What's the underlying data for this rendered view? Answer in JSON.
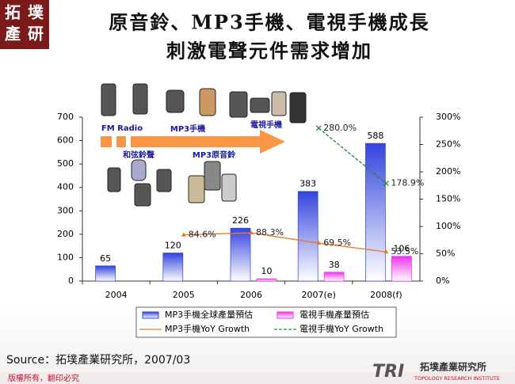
{
  "header": {
    "logo": [
      "拓",
      "墣",
      "產",
      "研"
    ]
  },
  "chart_data": {
    "type": "bar",
    "title": "原音鈴、MP3手機、電視手機成長",
    "subtitle": "刺激電聲元件需求增加",
    "categories": [
      "2004",
      "2005",
      "2006",
      "2007(e)",
      "2008(f)"
    ],
    "series": [
      {
        "name": "MP3手機全球產量預估",
        "color": "#3344dd",
        "values": [
          65,
          120,
          226,
          383,
          588
        ]
      },
      {
        "name": "電視手機產量預估",
        "color": "#ee33ee",
        "values": [
          null,
          null,
          10,
          38,
          106
        ]
      },
      {
        "name": "MP3手機YoY Growth",
        "type": "line",
        "axis": "y2",
        "color": "#ee7722",
        "values": [
          null,
          84.6,
          88.3,
          69.5,
          53.5
        ],
        "value_labels": [
          null,
          "84.6%",
          "88.3%",
          "69.5%",
          "53.5%"
        ]
      },
      {
        "name": "電視手機YoY Growth",
        "type": "line",
        "axis": "y2",
        "color": "#228833",
        "values": [
          null,
          null,
          null,
          280.0,
          178.9
        ],
        "value_labels": [
          null,
          null,
          null,
          "280.0%",
          "178.9%"
        ]
      }
    ],
    "ylim": [
      0,
      700
    ],
    "yticks": [
      0,
      100,
      200,
      300,
      400,
      500,
      600,
      700
    ],
    "y2lim": [
      0,
      300
    ],
    "y2ticks": [
      {
        "value": 0,
        "label": "0%"
      },
      {
        "value": 50,
        "label": "50%"
      },
      {
        "value": 100,
        "label": "100%"
      },
      {
        "value": 150,
        "label": "150%"
      },
      {
        "value": 200,
        "label": "200%"
      },
      {
        "value": 250,
        "label": "250%"
      },
      {
        "value": 300,
        "label": "300%"
      }
    ],
    "grid": false,
    "annotations": [
      "FM Radio",
      "MP3手機",
      "電視手機",
      "和弦鈴聲",
      "MP3原音鈴"
    ]
  },
  "footer": {
    "source": "Source：拓墣產業研究所，2007/03",
    "copyright": "版權所有，翻印必究",
    "brand_mark": "TRI",
    "brand_name": "拓墣產業研究所",
    "brand_en": "TOPOLOGY RESEARCH INSTITUTE"
  }
}
